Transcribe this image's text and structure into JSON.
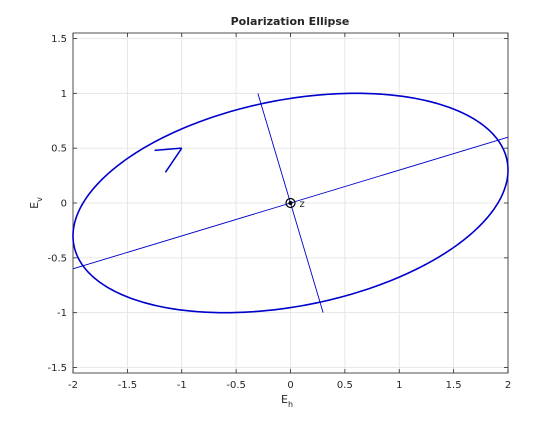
{
  "chart_data": {
    "type": "line",
    "title": "Polarization Ellipse",
    "xlabel": "E",
    "xlabel_sub": "h",
    "ylabel": "E",
    "ylabel_sub": "v",
    "xlim": [
      -2,
      2
    ],
    "ylim": [
      -1.55,
      1.55
    ],
    "xticks": [
      -2,
      -1.5,
      -1,
      -0.5,
      0,
      0.5,
      1,
      1.5,
      2
    ],
    "yticks": [
      -1.5,
      -1,
      -0.5,
      0,
      0.5,
      1,
      1.5
    ],
    "grid": true,
    "ellipse": {
      "Eh_amplitude": 2,
      "Ev_amplitude": 1,
      "phase_deg": 72.5
    },
    "major_axis": {
      "x": [
        -2,
        2
      ],
      "y": [
        -0.6,
        0.6
      ]
    },
    "minor_axis": {
      "x": [
        -0.3,
        0.3
      ],
      "y": [
        1.0,
        -1.0
      ]
    },
    "arrow": {
      "tip": [
        -1.0,
        0.5
      ],
      "barb1": [
        -1.25,
        0.48
      ],
      "barb2": [
        -1.15,
        0.28
      ]
    },
    "origin_marker": {
      "x": 0,
      "y": 0,
      "label": "z"
    },
    "color": "#0000cc"
  }
}
